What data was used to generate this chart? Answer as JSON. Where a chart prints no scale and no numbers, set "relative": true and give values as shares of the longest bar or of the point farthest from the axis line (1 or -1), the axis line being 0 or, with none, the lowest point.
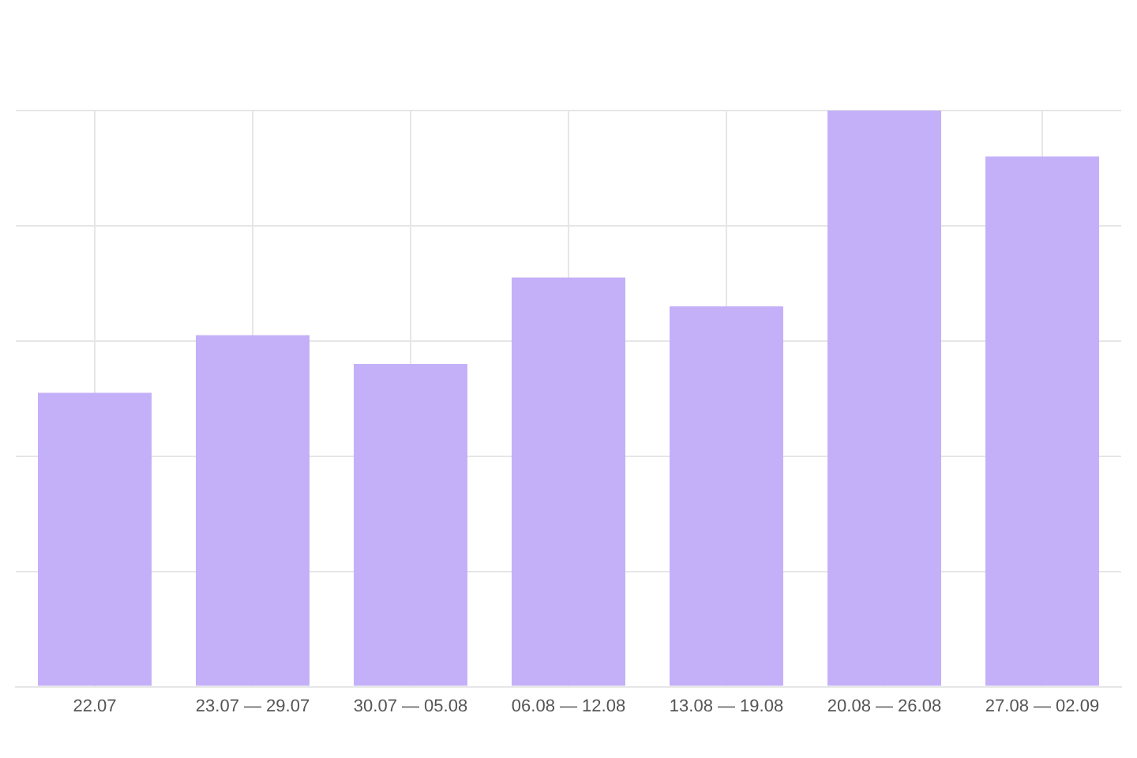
{
  "chart_data": {
    "type": "bar",
    "relative": true,
    "grid": true,
    "color": "#c4b0f8",
    "categories": [
      "22.07",
      "23.07 — 29.07",
      "30.07 — 05.08",
      "06.08 — 12.08",
      "13.08 — 19.08",
      "20.08 — 26.08",
      "27.08 — 02.09"
    ],
    "values": [
      0.51,
      0.61,
      0.56,
      0.71,
      0.66,
      1,
      0.92
    ]
  }
}
